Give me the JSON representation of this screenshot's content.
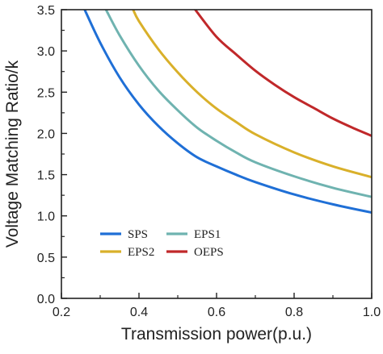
{
  "chart_data": {
    "type": "line",
    "title": "",
    "xlabel": "Transmission power(p.u.)",
    "ylabel": "Voltage Matching Ratio/k",
    "xlim": [
      0.2,
      1.0
    ],
    "ylim": [
      0.0,
      3.5
    ],
    "xticks": [
      "0.2",
      "0.4",
      "0.6",
      "0.8",
      "1.0"
    ],
    "yticks": [
      "0.0",
      "0.5",
      "1.0",
      "1.5",
      "2.0",
      "2.5",
      "3.0",
      "3.5"
    ],
    "grid": false,
    "legend_position": "lower-left",
    "series": [
      {
        "name": "SPS",
        "color": "#1f6fd6",
        "x": [
          0.26,
          0.3,
          0.35,
          0.4,
          0.45,
          0.5,
          0.55,
          0.6,
          0.65,
          0.7,
          0.8,
          0.9,
          1.0
        ],
        "y": [
          3.5,
          3.1,
          2.68,
          2.35,
          2.09,
          1.88,
          1.71,
          1.6,
          1.5,
          1.41,
          1.26,
          1.14,
          1.04
        ]
      },
      {
        "name": "EPS1",
        "color": "#6fb3b0",
        "x": [
          0.315,
          0.35,
          0.4,
          0.45,
          0.5,
          0.55,
          0.6,
          0.65,
          0.7,
          0.8,
          0.9,
          1.0
        ],
        "y": [
          3.5,
          3.19,
          2.82,
          2.52,
          2.28,
          2.07,
          1.91,
          1.77,
          1.65,
          1.48,
          1.34,
          1.23
        ]
      },
      {
        "name": "EPS2",
        "color": "#d9b02a",
        "x": [
          0.385,
          0.4,
          0.45,
          0.5,
          0.55,
          0.6,
          0.65,
          0.7,
          0.8,
          0.9,
          1.0
        ],
        "y": [
          3.5,
          3.36,
          3.02,
          2.74,
          2.5,
          2.3,
          2.14,
          1.99,
          1.77,
          1.6,
          1.47
        ]
      },
      {
        "name": "OEPS",
        "color": "#c0282a",
        "x": [
          0.545,
          0.6,
          0.65,
          0.7,
          0.75,
          0.8,
          0.85,
          0.9,
          0.95,
          1.0
        ],
        "y": [
          3.5,
          3.17,
          2.96,
          2.76,
          2.59,
          2.44,
          2.31,
          2.18,
          2.07,
          1.97
        ]
      }
    ],
    "legend_layout": [
      [
        "SPS",
        "EPS1"
      ],
      [
        "EPS2",
        "OEPS"
      ]
    ]
  }
}
